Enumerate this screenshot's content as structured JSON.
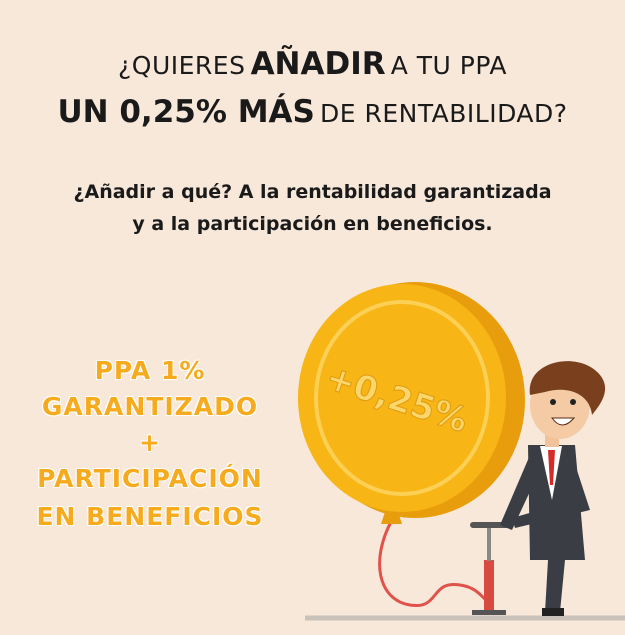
{
  "headline": {
    "line1": [
      "¿QUIERES",
      "AÑADIR",
      "A TU PPA"
    ],
    "line2": [
      "UN 0,25% MÁS",
      "DE RENTABILIDAD?"
    ]
  },
  "subtitle": [
    "¿Añadir a qué? A la rentabilidad garantizada",
    "y a la participación en beneficios."
  ],
  "offer": [
    "PPA 1%",
    "GARANTIZADO",
    "+",
    "PARTICIPACIÓN",
    "EN BENEFICIOS"
  ],
  "coin_label": "+0,25%"
}
